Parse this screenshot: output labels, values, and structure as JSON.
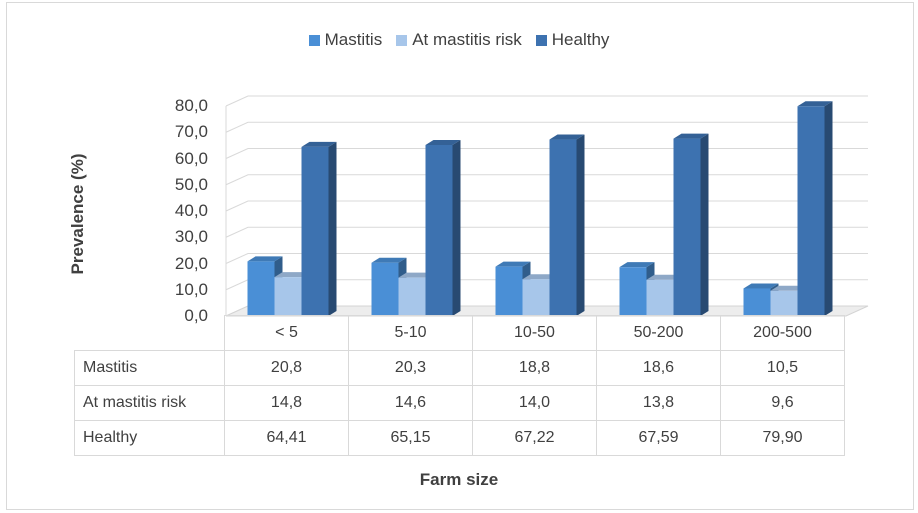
{
  "chart_data": {
    "type": "bar",
    "style": "3d-clustered-column-with-data-table",
    "title": "",
    "xlabel": "Farm size",
    "ylabel": "Prevalence (%)",
    "ylim": [
      0,
      80
    ],
    "yticks": [
      "0,0",
      "10,0",
      "20,0",
      "30,0",
      "40,0",
      "50,0",
      "60,0",
      "70,0",
      "80,0"
    ],
    "categories": [
      "< 5",
      "5-10",
      "10-50",
      "50-200",
      "200-500"
    ],
    "series": [
      {
        "name": "Mastitis",
        "color": "#4a8fd6",
        "values": [
          20.8,
          20.3,
          18.8,
          18.6,
          10.5
        ],
        "labels": [
          "20,8",
          "20,3",
          "18,8",
          "18,6",
          "10,5"
        ]
      },
      {
        "name": "At mastitis risk",
        "color": "#a7c6ea",
        "values": [
          14.8,
          14.6,
          14.0,
          13.8,
          9.6
        ],
        "labels": [
          "14,8",
          "14,6",
          "14,0",
          "13,8",
          "9,6"
        ]
      },
      {
        "name": "Healthy",
        "color": "#3d72b0",
        "values": [
          64.41,
          65.15,
          67.22,
          67.59,
          79.9
        ],
        "labels": [
          "64,41",
          "65,15",
          "67,22",
          "67,59",
          "79,90"
        ]
      }
    ],
    "legend_position": "top-center",
    "gridlines": true
  }
}
